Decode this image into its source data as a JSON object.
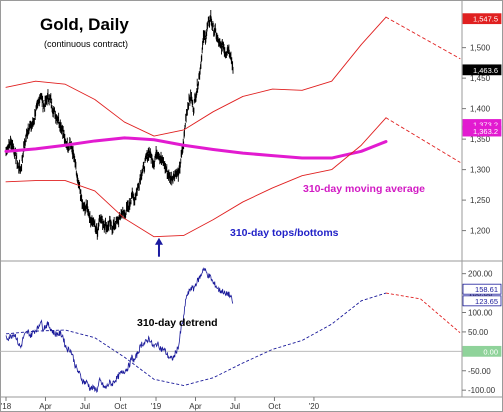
{
  "title": "Gold, Daily",
  "subtitle": "(continuous contract)",
  "annotations": {
    "moving_average": "310-day moving average",
    "tops_bottoms": "310-day tops/bottoms",
    "detrend": "310-day detrend"
  },
  "colors": {
    "price": "#000000",
    "moving_average": "#e21bd0",
    "envelope": "#e02020",
    "detrend_line": "#1a1a9a",
    "arrow": "#1a1aa0",
    "text_blue": "#2222c8",
    "text_magenta": "#d21ac4"
  },
  "chart_data": [
    {
      "type": "line",
      "name": "price-panel",
      "title": "Gold, Daily",
      "subtitle": "(continuous contract)",
      "xlabel": "",
      "ylabel": "",
      "x_tick_labels": [
        "'18",
        "Apr",
        "Jul",
        "Oct",
        "'19",
        "Apr",
        "Jul",
        "Oct",
        "'20"
      ],
      "y_ticks": [
        1200,
        1250,
        1300,
        1350,
        1400,
        1450,
        1500
      ],
      "y_tick_labels": [
        "1,200",
        "1,250",
        "1,300",
        "1,350",
        "1,400",
        "1,450",
        "1,500"
      ],
      "ylim": [
        1160,
        1565
      ],
      "grid": false,
      "value_badges": [
        {
          "value": "1,547.5",
          "price": 1547.5,
          "bg": "#e02020",
          "fg": "#ffffff"
        },
        {
          "value": "1,463.6",
          "price": 1463.6,
          "bg": "#000000",
          "fg": "#ffffff"
        },
        {
          "value": "1,373.2",
          "price": 1374,
          "bg": "#e21bd0",
          "fg": "#ffffff"
        },
        {
          "value": "1,363.2",
          "price": 1363.2,
          "bg": "#e21bd0",
          "fg": "#ffffff"
        }
      ],
      "series": [
        {
          "key": "price",
          "style": "bars",
          "x_step": 0.5,
          "values": [
            1330,
            1340,
            1345,
            1335,
            1320,
            1305,
            1300,
            1330,
            1350,
            1370,
            1370,
            1375,
            1395,
            1405,
            1425,
            1405,
            1410,
            1420,
            1415,
            1400,
            1390,
            1385,
            1375,
            1365,
            1345,
            1340,
            1345,
            1330,
            1310,
            1280,
            1265,
            1240,
            1235,
            1240,
            1220,
            1215,
            1210,
            1195,
            1225,
            1215,
            1210,
            1205,
            1212,
            1205,
            1210,
            1215,
            1220,
            1230,
            1225,
            1235,
            1240,
            1260,
            1250,
            1265,
            1280,
            1295,
            1305,
            1320,
            1330,
            1320,
            1310,
            1330,
            1325,
            1315,
            1310,
            1300,
            1290,
            1285,
            1290,
            1295,
            1290,
            1320,
            1345,
            1390,
            1410,
            1420,
            1400,
            1425,
            1445,
            1475,
            1515,
            1520,
            1540,
            1550,
            1530,
            1525,
            1510,
            1500,
            1505,
            1490,
            1500,
            1490,
            1465
          ]
        },
        {
          "key": "moving_average",
          "style": "line",
          "x": [
            0,
            6,
            12,
            18,
            24,
            30,
            36,
            42,
            48,
            54,
            60,
            66,
            72,
            77
          ],
          "values": [
            1330,
            1334,
            1340,
            1347,
            1352,
            1349,
            1340,
            1333,
            1327,
            1323,
            1319,
            1319,
            1330,
            1346
          ]
        },
        {
          "key": "upper_envelope",
          "style": "line",
          "x": [
            0,
            6,
            12,
            18,
            24,
            30,
            36,
            42,
            48,
            54,
            60,
            66,
            72,
            77
          ],
          "values": [
            1435,
            1445,
            1440,
            1415,
            1378,
            1355,
            1365,
            1395,
            1420,
            1432,
            1430,
            1445,
            1505,
            1550
          ]
        },
        {
          "key": "lower_envelope",
          "style": "line",
          "x": [
            0,
            6,
            12,
            18,
            24,
            30,
            36,
            42,
            48,
            54,
            60,
            66,
            72,
            77
          ],
          "values": [
            1280,
            1282,
            1282,
            1265,
            1220,
            1190,
            1192,
            1218,
            1247,
            1270,
            1290,
            1300,
            1340,
            1385
          ]
        },
        {
          "key": "projection_upper",
          "style": "dashed",
          "x": [
            77,
            92
          ],
          "values": [
            1550,
            1482
          ]
        },
        {
          "key": "projection_lower",
          "style": "dashed",
          "x": [
            77,
            92
          ],
          "values": [
            1385,
            1312
          ]
        }
      ],
      "arrow_marker": {
        "x": 31,
        "price": 1190
      }
    },
    {
      "type": "line",
      "name": "detrend-panel",
      "title": "310-day detrend",
      "x_tick_labels": [
        "'18",
        "Apr",
        "Jul",
        "Oct",
        "'19",
        "Apr",
        "Jul",
        "Oct",
        "'20"
      ],
      "y_ticks": [
        -100,
        -50,
        50,
        100,
        150,
        200
      ],
      "y_tick_labels": [
        "-100.00",
        "-50.00",
        "50.00",
        "100.00",
        "150.00",
        "200.00"
      ],
      "ylim": [
        -115,
        230
      ],
      "grid": false,
      "zero_line": 0,
      "value_badges": [
        {
          "value": "158.61",
          "level": 160,
          "bg": "#ffffff",
          "fg": "#1a1a9a"
        },
        {
          "value": "123.65",
          "level": 130,
          "bg": "#ffffff",
          "fg": "#1a1a9a"
        },
        {
          "value": "0.00",
          "level": 0,
          "bg": "#8fd39a",
          "fg": "#ffffff"
        }
      ],
      "series": [
        {
          "key": "detrend",
          "style": "line",
          "x_step": 0.5,
          "values": [
            35,
            35,
            40,
            45,
            40,
            20,
            10,
            35,
            45,
            50,
            40,
            50,
            55,
            60,
            80,
            60,
            65,
            70,
            60,
            50,
            45,
            45,
            45,
            40,
            15,
            5,
            5,
            -10,
            -35,
            -50,
            -60,
            -75,
            -80,
            -80,
            -95,
            -95,
            -95,
            -100,
            -75,
            -85,
            -95,
            -90,
            -80,
            -85,
            -75,
            -70,
            -60,
            -55,
            -50,
            -45,
            -35,
            -15,
            -25,
            -10,
            5,
            20,
            20,
            25,
            35,
            20,
            10,
            20,
            15,
            5,
            5,
            -5,
            -15,
            -20,
            -15,
            0,
            15,
            60,
            85,
            140,
            150,
            165,
            160,
            175,
            185,
            195,
            215,
            205,
            195,
            190,
            175,
            170,
            160,
            155,
            155,
            145,
            150,
            140,
            125
          ]
        },
        {
          "key": "detrend_cycle",
          "style": "dashed",
          "x": [
            0,
            6,
            12,
            18,
            24,
            30,
            36,
            42,
            48,
            54,
            60,
            66,
            72,
            77,
            84,
            92
          ],
          "values": [
            45,
            52,
            55,
            35,
            -15,
            -72,
            -88,
            -68,
            -30,
            5,
            28,
            70,
            130,
            150,
            135,
            48
          ]
        }
      ]
    }
  ]
}
